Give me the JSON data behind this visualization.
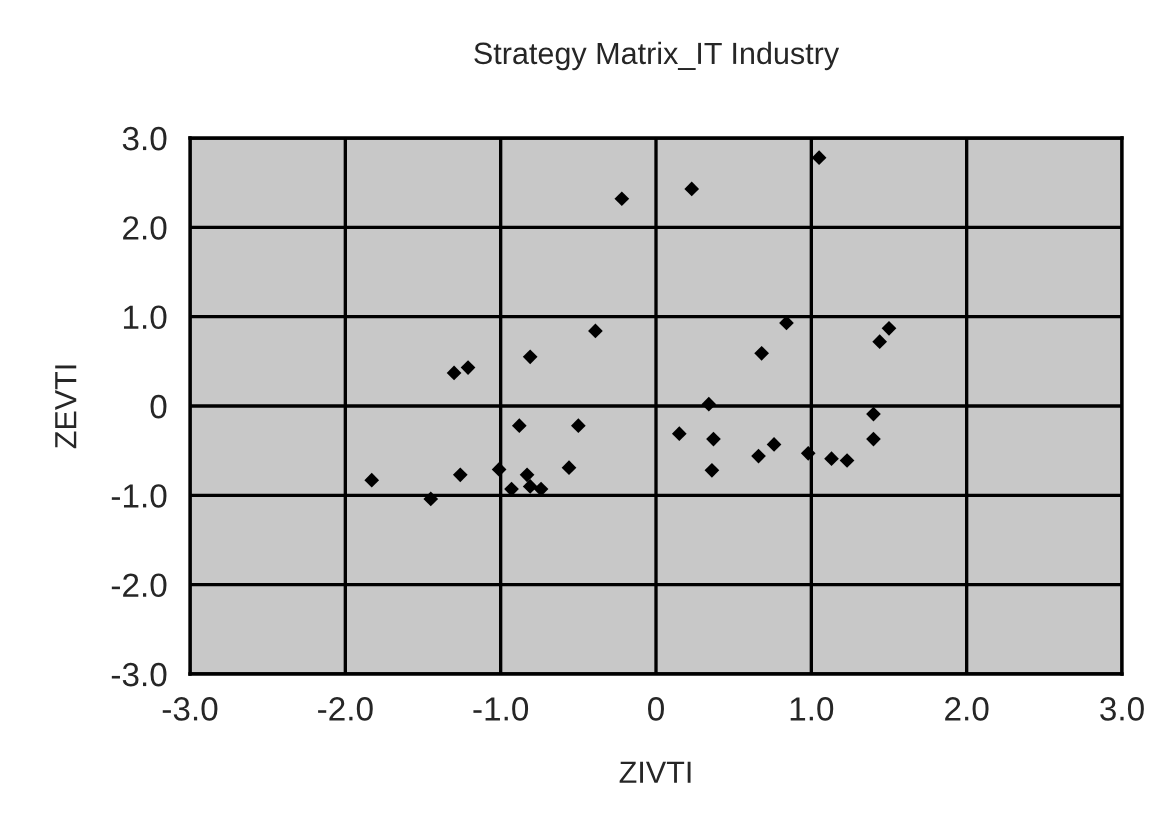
{
  "chart_data": {
    "type": "scatter",
    "title": "Strategy Matrix_IT Industry",
    "xlabel": "ZIVTI",
    "ylabel": "ZEVTI",
    "x": [
      -1.83,
      -1.45,
      -1.3,
      -1.21,
      -1.26,
      -0.81,
      -0.88,
      -1.01,
      -0.93,
      -0.83,
      -0.81,
      -0.74,
      -0.56,
      -0.5,
      -0.39,
      -0.22,
      0.23,
      1.05,
      0.84,
      0.68,
      1.44,
      1.5,
      0.34,
      0.15,
      0.37,
      0.36,
      0.66,
      0.76,
      0.98,
      1.13,
      1.23,
      1.4,
      1.4
    ],
    "series": [
      {
        "color": "#000000",
        "values": [
          -0.83,
          -1.04,
          0.37,
          0.43,
          -0.77,
          0.55,
          -0.22,
          -0.71,
          -0.93,
          -0.77,
          -0.9,
          -0.93,
          -0.69,
          -0.22,
          0.84,
          2.32,
          2.43,
          2.78,
          0.93,
          0.59,
          0.72,
          0.87,
          0.02,
          -0.31,
          -0.37,
          -0.72,
          -0.56,
          -0.43,
          -0.53,
          -0.59,
          -0.61,
          -0.09,
          -0.37
        ]
      }
    ],
    "xlim": [
      -3,
      3
    ],
    "ylim": [
      -3,
      3
    ],
    "xticks": [
      {
        "value": -3,
        "label": "-3.0"
      },
      {
        "value": -2,
        "label": "-2.0"
      },
      {
        "value": -1,
        "label": "-1.0"
      },
      0,
      {
        "value": 1,
        "label": "1.0"
      },
      {
        "value": 2,
        "label": "2.0"
      },
      {
        "value": 3,
        "label": "3.0"
      }
    ],
    "yticks": [
      {
        "value": -3,
        "label": "-3.0"
      },
      {
        "value": -2,
        "label": "-2.0"
      },
      {
        "value": -1,
        "label": "-1.0"
      },
      0,
      {
        "value": 1,
        "label": "1.0"
      },
      {
        "value": 2,
        "label": "2.0"
      },
      {
        "value": 3,
        "label": "3.0"
      }
    ],
    "grid": true,
    "marker": "diamond"
  }
}
